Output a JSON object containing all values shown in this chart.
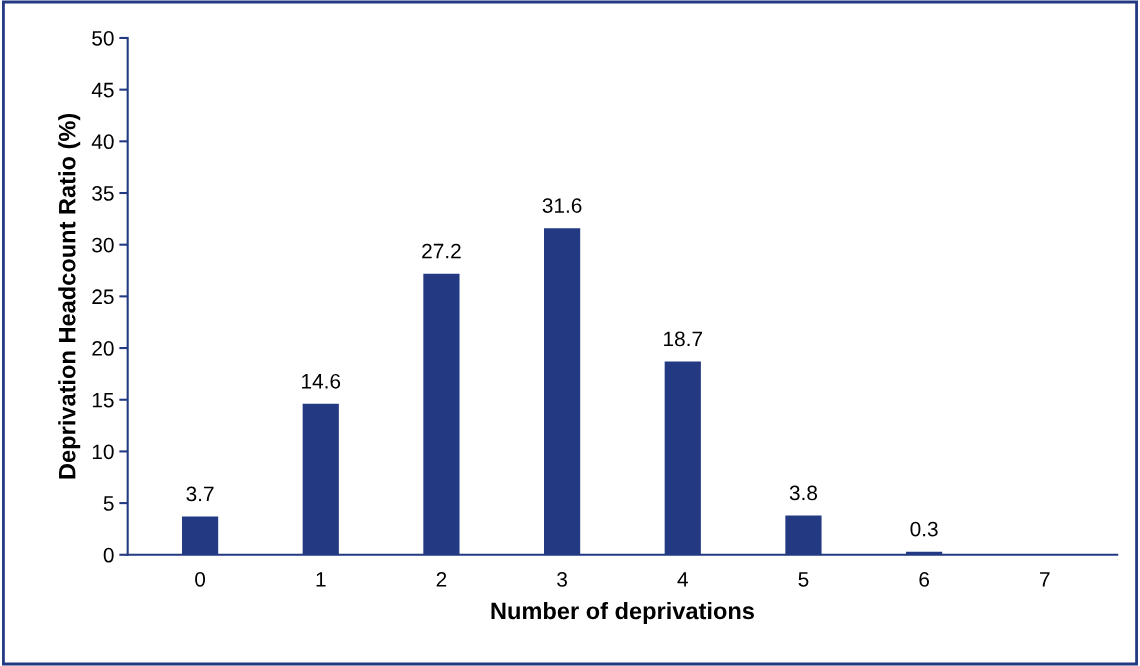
{
  "chart_data": {
    "type": "bar",
    "xlabel": "Number of deprivations",
    "ylabel": "Deprivation Headcount Ratio (%)",
    "categories": [
      "0",
      "1",
      "2",
      "3",
      "4",
      "5",
      "6",
      "7"
    ],
    "values": [
      3.7,
      14.6,
      27.2,
      31.6,
      18.7,
      3.8,
      0.3,
      null
    ],
    "color": "#233a83",
    "ylim": [
      0,
      50
    ],
    "yticks": [
      0,
      5,
      10,
      15,
      20,
      25,
      30,
      35,
      40,
      45,
      50
    ],
    "data_labels": true,
    "grid": false,
    "legend": false
  }
}
